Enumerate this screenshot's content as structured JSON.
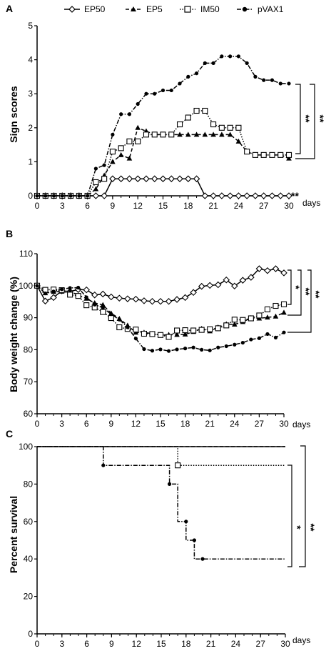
{
  "chart_data": [
    {
      "panel": "A",
      "type": "line",
      "ylabel": "Sign scores",
      "xunit": "days",
      "ylim": [
        0,
        5
      ],
      "yticks": [
        0,
        1,
        2,
        3,
        4,
        5
      ],
      "xlim": [
        0,
        30
      ],
      "xticks": [
        0,
        3,
        6,
        9,
        12,
        15,
        18,
        21,
        24,
        27,
        30
      ],
      "legend": [
        "EP50",
        "EP5",
        "IM50",
        "pVAX1"
      ],
      "series": [
        {
          "name": "EP50",
          "marker": "diamond",
          "dash": "solid",
          "x": [
            0,
            1,
            2,
            3,
            4,
            5,
            6,
            7,
            8,
            9,
            10,
            11,
            12,
            13,
            14,
            15,
            16,
            17,
            18,
            19,
            20,
            21,
            22,
            23,
            24,
            25,
            26,
            27,
            28,
            29,
            30
          ],
          "y": [
            0,
            0,
            0,
            0,
            0,
            0,
            0,
            0,
            0,
            0.5,
            0.5,
            0.5,
            0.5,
            0.5,
            0.5,
            0.5,
            0.5,
            0.5,
            0.5,
            0.5,
            0,
            0,
            0,
            0,
            0,
            0,
            0,
            0,
            0,
            0,
            0
          ]
        },
        {
          "name": "EP5",
          "marker": "triangle",
          "dash": "dashed",
          "x": [
            0,
            1,
            2,
            3,
            4,
            5,
            6,
            7,
            8,
            9,
            10,
            11,
            12,
            13,
            14,
            15,
            16,
            17,
            18,
            19,
            20,
            21,
            22,
            23,
            24,
            25,
            26,
            27,
            28,
            29,
            30
          ],
          "y": [
            0,
            0,
            0,
            0,
            0,
            0,
            0,
            0.2,
            0.6,
            1.0,
            1.2,
            1.1,
            2.0,
            1.9,
            1.8,
            1.8,
            1.8,
            1.8,
            1.8,
            1.8,
            1.8,
            1.8,
            1.8,
            1.8,
            1.6,
            1.3,
            1.2,
            1.2,
            1.2,
            1.2,
            1.1
          ]
        },
        {
          "name": "IM50",
          "marker": "square",
          "dash": "dotted",
          "x": [
            0,
            1,
            2,
            3,
            4,
            5,
            6,
            7,
            8,
            9,
            10,
            11,
            12,
            13,
            14,
            15,
            16,
            17,
            18,
            19,
            20,
            21,
            22,
            23,
            24,
            25,
            26,
            27,
            28,
            29,
            30
          ],
          "y": [
            0,
            0,
            0,
            0,
            0,
            0,
            0,
            0.4,
            0.5,
            1.3,
            1.4,
            1.6,
            1.6,
            1.8,
            1.8,
            1.8,
            1.8,
            2.1,
            2.3,
            2.5,
            2.5,
            2.1,
            2.0,
            2.0,
            2.0,
            1.3,
            1.2,
            1.2,
            1.2,
            1.2,
            1.2
          ]
        },
        {
          "name": "pVAX1",
          "marker": "circle",
          "dash": "dashdot",
          "x": [
            0,
            1,
            2,
            3,
            4,
            5,
            6,
            7,
            8,
            9,
            10,
            11,
            12,
            13,
            14,
            15,
            16,
            17,
            18,
            19,
            20,
            21,
            22,
            23,
            24,
            25,
            26,
            27,
            28,
            29,
            30
          ],
          "y": [
            0,
            0,
            0,
            0,
            0,
            0,
            0,
            0.8,
            0.9,
            1.8,
            2.4,
            2.4,
            2.7,
            3.0,
            3.0,
            3.1,
            3.1,
            3.3,
            3.5,
            3.6,
            3.9,
            3.9,
            4.1,
            4.1,
            4.1,
            3.9,
            3.5,
            3.4,
            3.4,
            3.3,
            3.3
          ]
        }
      ],
      "annotations": [
        {
          "text": "**",
          "series": "EP50",
          "at_y": 0
        },
        {
          "text": "**",
          "bracket": [
            1.2,
            3.3
          ]
        },
        {
          "text": "**",
          "bracket": [
            1.1,
            3.3
          ]
        }
      ]
    },
    {
      "panel": "B",
      "type": "line",
      "ylabel": "Body weight change (%)",
      "xunit": "days",
      "ylim": [
        60,
        110
      ],
      "yticks": [
        60,
        70,
        80,
        90,
        100,
        110
      ],
      "xlim": [
        0,
        30
      ],
      "xticks": [
        0,
        3,
        6,
        9,
        12,
        15,
        18,
        21,
        24,
        27,
        30
      ],
      "series": [
        {
          "name": "EP50",
          "marker": "diamond",
          "dash": "solid",
          "x": [
            0,
            1,
            2,
            3,
            4,
            5,
            6,
            7,
            8,
            9,
            10,
            11,
            12,
            13,
            14,
            15,
            16,
            17,
            18,
            19,
            20,
            21,
            22,
            23,
            24,
            25,
            26,
            27,
            28,
            29,
            30
          ],
          "y": [
            100,
            95.2,
            96.3,
            98.4,
            98.2,
            98.8,
            98.7,
            97.1,
            97.4,
            96.5,
            96.1,
            95.9,
            95.8,
            95.3,
            95.1,
            95.1,
            95.1,
            95.7,
            96.3,
            97.9,
            99.8,
            100.1,
            100.3,
            101.8,
            99.9,
            101.7,
            102.6,
            105.3,
            104.7,
            105.3,
            104.0
          ]
        },
        {
          "name": "EP5",
          "marker": "triangle",
          "dash": "dashed",
          "x": [
            0,
            1,
            2,
            3,
            4,
            5,
            6,
            7,
            8,
            9,
            10,
            11,
            12,
            13,
            14,
            15,
            16,
            17,
            18,
            19,
            20,
            21,
            22,
            23,
            24,
            25,
            26,
            27,
            28,
            29,
            30
          ],
          "y": [
            100,
            97.7,
            98.1,
            98.2,
            98.3,
            97.0,
            96.0,
            94.6,
            94.0,
            91.4,
            89.7,
            87.6,
            85.4,
            85.4,
            85.0,
            84.5,
            84.7,
            84.7,
            84.8,
            85.6,
            86.6,
            85.8,
            87.0,
            88.0,
            87.9,
            88.7,
            89.9,
            89.8,
            90.1,
            90.4,
            91.6
          ]
        },
        {
          "name": "IM50",
          "marker": "square",
          "dash": "dotted",
          "x": [
            0,
            1,
            2,
            3,
            4,
            5,
            6,
            7,
            8,
            9,
            10,
            11,
            12,
            13,
            14,
            15,
            16,
            17,
            18,
            19,
            20,
            21,
            22,
            23,
            24,
            25,
            26,
            27,
            28,
            29,
            30
          ],
          "y": [
            100,
            98.7,
            98.8,
            98.6,
            97.2,
            96.8,
            93.9,
            93.2,
            91.8,
            89.9,
            87.0,
            86.5,
            86.3,
            85.0,
            84.9,
            84.6,
            84.0,
            86.0,
            86.1,
            86.0,
            86.2,
            86.4,
            86.7,
            87.6,
            89.4,
            89.3,
            89.8,
            90.7,
            92.6,
            93.7,
            94.2
          ]
        },
        {
          "name": "pVAX1",
          "marker": "circle",
          "dash": "dashdot",
          "x": [
            0,
            1,
            2,
            3,
            4,
            5,
            6,
            7,
            8,
            9,
            10,
            11,
            12,
            13,
            14,
            15,
            16,
            17,
            18,
            19,
            20,
            21,
            22,
            23,
            24,
            25,
            26,
            27,
            28,
            29,
            30
          ],
          "y": [
            100,
            97.6,
            98.2,
            98.9,
            99.3,
            99.4,
            96.4,
            94.1,
            93.1,
            91.1,
            89.4,
            87.0,
            83.5,
            80.2,
            79.7,
            80.1,
            79.6,
            80.1,
            80.4,
            80.7,
            80.0,
            79.8,
            80.7,
            81.1,
            81.6,
            82.2,
            83.2,
            83.6,
            84.9,
            83.8,
            85.4
          ]
        }
      ],
      "annotations": [
        {
          "text": "**",
          "bracket": [
            94,
            104
          ]
        },
        {
          "text": "**",
          "bracket": [
            91,
            104
          ]
        },
        {
          "text": "**",
          "bracket": [
            85,
            104
          ]
        }
      ]
    },
    {
      "panel": "C",
      "type": "line",
      "ylabel": "Percent survival",
      "xunit": "days",
      "ylim": [
        0,
        100
      ],
      "yticks": [
        0,
        20,
        40,
        60,
        80,
        100
      ],
      "xlim": [
        0,
        30
      ],
      "xticks": [
        0,
        3,
        6,
        9,
        12,
        15,
        18,
        21,
        24,
        27,
        30
      ],
      "series": [
        {
          "name": "EP50",
          "dash": "solid",
          "step": true,
          "x": [
            0,
            30
          ],
          "y": [
            100,
            100
          ]
        },
        {
          "name": "EP5",
          "dash": "dashed",
          "step": true,
          "x": [
            0,
            30
          ],
          "y": [
            100,
            100
          ]
        },
        {
          "name": "IM50",
          "dash": "dotted",
          "step": true,
          "x": [
            0,
            17,
            30
          ],
          "y": [
            100,
            90,
            90
          ],
          "censor": [
            [
              17,
              90
            ]
          ]
        },
        {
          "name": "pVAX1",
          "dash": "dashdot",
          "step": true,
          "x": [
            0,
            8,
            16,
            17,
            18,
            19,
            20,
            30
          ],
          "y": [
            100,
            90,
            80,
            60,
            50,
            40,
            40,
            40
          ],
          "censor": [
            [
              8,
              90
            ],
            [
              16,
              80
            ],
            [
              18,
              60
            ],
            [
              19,
              50
            ],
            [
              20,
              40
            ]
          ]
        }
      ],
      "annotations": [
        {
          "text": "*",
          "bracket": [
            40,
            90
          ]
        },
        {
          "text": "**",
          "bracket": [
            40,
            100
          ]
        }
      ]
    }
  ],
  "labels": {
    "panel_a": "A",
    "panel_b": "B",
    "panel_c": "C",
    "days": "days",
    "legend": [
      "EP50",
      "EP5",
      "IM50",
      "pVAX1"
    ],
    "ylabel_a": "Sign scores",
    "ylabel_b": "Body weight change (%)",
    "ylabel_c": "Percent survival",
    "sig_a_ep50": "**",
    "sig_a_1": "**",
    "sig_a_2": "**",
    "sig_b_1": "*",
    "sig_b_1b": "*",
    "sig_b_2": "**",
    "sig_b_3": "**",
    "sig_c_1": "*",
    "sig_c_2": "**"
  },
  "colors": {
    "line": "#000000",
    "background": "#ffffff"
  }
}
